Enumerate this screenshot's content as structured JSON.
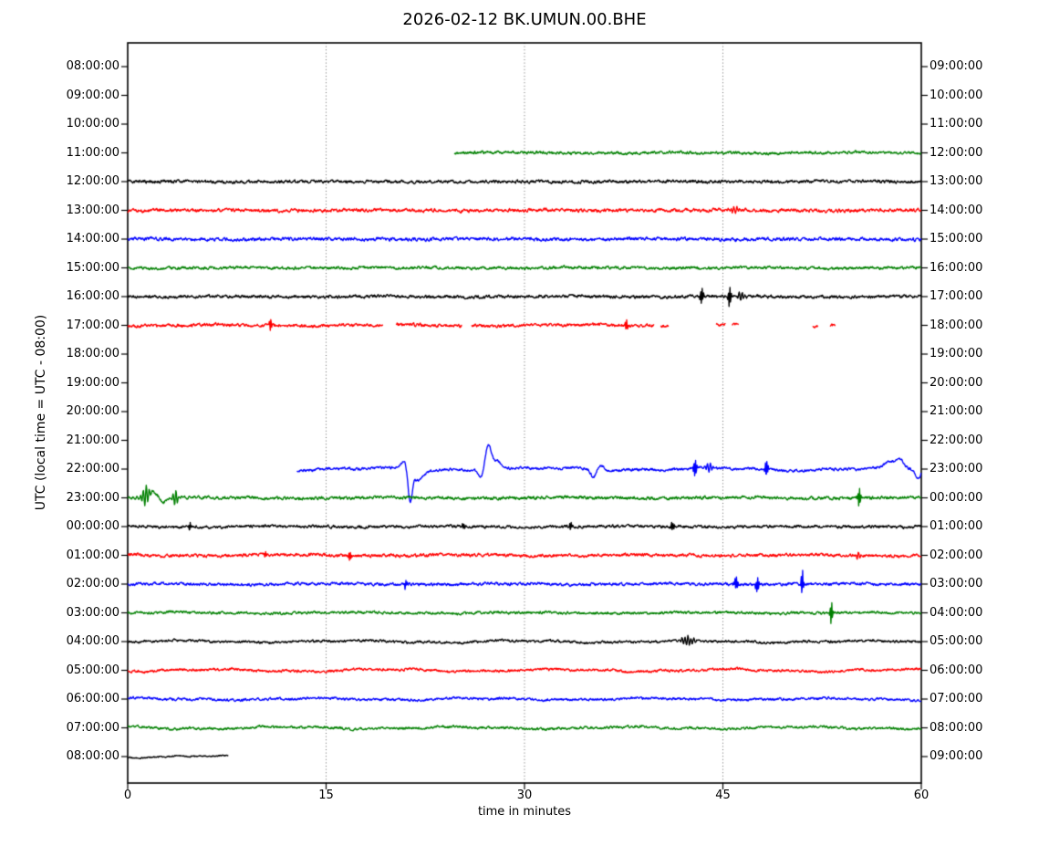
{
  "chart_data": {
    "type": "line",
    "subtype": "seismogram-dayplot",
    "title": "2026-02-12 BK.UMUN.00.BHE",
    "xlabel": "time in minutes",
    "ylabel": "UTC (local time = UTC - 08:00)",
    "xlim": [
      0,
      60
    ],
    "x_ticks": [
      0,
      15,
      30,
      45,
      60
    ],
    "minutes_per_row": 60,
    "grid": {
      "vertical_dotted_at": [
        15,
        30,
        45
      ],
      "horizontal": false
    },
    "legend": null,
    "colors": {
      "black": "#000000",
      "red": "#ff0000",
      "blue": "#0000ff",
      "green": "#008000"
    },
    "rows": [
      {
        "utc_left": "08:00:00",
        "utc_right": "09:00:00",
        "color": "black",
        "segments": [],
        "noise": {
          "fuzz": 0,
          "wander": 0
        },
        "events": []
      },
      {
        "utc_left": "09:00:00",
        "utc_right": "10:00:00",
        "color": "red",
        "segments": [],
        "noise": {
          "fuzz": 0,
          "wander": 0
        },
        "events": []
      },
      {
        "utc_left": "10:00:00",
        "utc_right": "11:00:00",
        "color": "blue",
        "segments": [],
        "noise": {
          "fuzz": 0,
          "wander": 0
        },
        "events": []
      },
      {
        "utc_left": "11:00:00",
        "utc_right": "12:00:00",
        "color": "green",
        "segments": [
          [
            24.7,
            60
          ]
        ],
        "noise": {
          "fuzz": 2.2,
          "wander": 0.8
        },
        "events": []
      },
      {
        "utc_left": "12:00:00",
        "utc_right": "13:00:00",
        "color": "black",
        "segments": [
          [
            0,
            60
          ]
        ],
        "noise": {
          "fuzz": 2.4,
          "wander": 0.5
        },
        "events": []
      },
      {
        "utc_left": "13:00:00",
        "utc_right": "14:00:00",
        "color": "red",
        "segments": [
          [
            0,
            60
          ]
        ],
        "noise": {
          "fuzz": 2.6,
          "wander": 0.6
        },
        "events": [
          {
            "t": 46.0,
            "amp": 3,
            "w": 0.5,
            "kind": "burst"
          }
        ]
      },
      {
        "utc_left": "14:00:00",
        "utc_right": "15:00:00",
        "color": "blue",
        "segments": [
          [
            0,
            60
          ]
        ],
        "noise": {
          "fuzz": 2.6,
          "wander": 0.5
        },
        "events": []
      },
      {
        "utc_left": "15:00:00",
        "utc_right": "16:00:00",
        "color": "green",
        "segments": [
          [
            0,
            60
          ]
        ],
        "noise": {
          "fuzz": 2.2,
          "wander": 0.6
        },
        "events": []
      },
      {
        "utc_left": "16:00:00",
        "utc_right": "17:00:00",
        "color": "black",
        "segments": [
          [
            0,
            60
          ]
        ],
        "noise": {
          "fuzz": 2.4,
          "wander": 0.6
        },
        "events": [
          {
            "t": 43.4,
            "amp": 9,
            "w": 0.12,
            "kind": "spike"
          },
          {
            "t": 45.5,
            "amp": 11,
            "w": 0.12,
            "kind": "spike"
          },
          {
            "t": 46.4,
            "amp": 4,
            "w": 0.3,
            "kind": "burst"
          }
        ]
      },
      {
        "utc_left": "17:00:00",
        "utc_right": "18:00:00",
        "color": "red",
        "segments": [
          [
            0,
            19.3
          ],
          [
            20.3,
            25.3
          ],
          [
            26.0,
            39.8
          ],
          [
            40.3,
            40.9
          ],
          [
            44.5,
            45.2
          ],
          [
            45.7,
            46.2
          ],
          [
            51.8,
            52.2
          ],
          [
            53.1,
            53.5
          ]
        ],
        "noise": {
          "fuzz": 2.4,
          "wander": 1.2
        },
        "events": [
          {
            "t": 10.8,
            "amp": 8,
            "w": 0.1,
            "kind": "spike"
          },
          {
            "t": 37.7,
            "amp": 6,
            "w": 0.12,
            "kind": "spike"
          }
        ]
      },
      {
        "utc_left": "18:00:00",
        "utc_right": "19:00:00",
        "color": "blue",
        "segments": [],
        "noise": {
          "fuzz": 0,
          "wander": 0
        },
        "events": []
      },
      {
        "utc_left": "19:00:00",
        "utc_right": "20:00:00",
        "color": "green",
        "segments": [],
        "noise": {
          "fuzz": 0,
          "wander": 0
        },
        "events": []
      },
      {
        "utc_left": "20:00:00",
        "utc_right": "21:00:00",
        "color": "black",
        "segments": [],
        "noise": {
          "fuzz": 0,
          "wander": 0
        },
        "events": []
      },
      {
        "utc_left": "21:00:00",
        "utc_right": "22:00:00",
        "color": "red",
        "segments": [],
        "noise": {
          "fuzz": 0,
          "wander": 0
        },
        "events": []
      },
      {
        "utc_left": "22:00:00",
        "utc_right": "23:00:00",
        "color": "blue",
        "segments": [
          [
            12.8,
            60
          ]
        ],
        "noise": {
          "fuzz": 2.0,
          "wander": 2.2
        },
        "events": [
          {
            "t": 20.9,
            "amp": 8,
            "w": 0.35,
            "kind": "bump"
          },
          {
            "t": 21.35,
            "amp": 34,
            "w": 0.22,
            "kind": "dip"
          },
          {
            "t": 21.95,
            "amp": 12,
            "w": 0.55,
            "kind": "dip"
          },
          {
            "t": 26.7,
            "amp": 8,
            "w": 0.25,
            "kind": "dip"
          },
          {
            "t": 27.25,
            "amp": 25,
            "w": 0.3,
            "kind": "bump"
          },
          {
            "t": 27.85,
            "amp": 9,
            "w": 0.55,
            "kind": "bump"
          },
          {
            "t": 35.2,
            "amp": 9,
            "w": 0.25,
            "kind": "dip"
          },
          {
            "t": 35.8,
            "amp": 5,
            "w": 0.3,
            "kind": "bump"
          },
          {
            "t": 42.9,
            "amp": 10,
            "w": 0.13,
            "kind": "spike"
          },
          {
            "t": 44.0,
            "amp": 4,
            "w": 0.3,
            "kind": "burst"
          },
          {
            "t": 48.3,
            "amp": 9,
            "w": 0.13,
            "kind": "spike"
          },
          {
            "t": 57.6,
            "amp": 7,
            "w": 0.5,
            "kind": "bump"
          },
          {
            "t": 58.4,
            "amp": 9,
            "w": 0.4,
            "kind": "bump"
          },
          {
            "t": 59.75,
            "amp": 11,
            "w": 0.25,
            "kind": "dip"
          }
        ]
      },
      {
        "utc_left": "23:00:00",
        "utc_right": "00:00:00",
        "color": "green",
        "segments": [
          [
            0,
            60
          ]
        ],
        "noise": {
          "fuzz": 2.4,
          "wander": 0.8
        },
        "events": [
          {
            "t": 1.35,
            "amp": 11,
            "w": 0.3,
            "kind": "burst"
          },
          {
            "t": 1.9,
            "amp": 7,
            "w": 0.5,
            "kind": "bump"
          },
          {
            "t": 2.7,
            "amp": 4,
            "w": 0.4,
            "kind": "dip"
          },
          {
            "t": 3.6,
            "amp": 9,
            "w": 0.2,
            "kind": "burst"
          },
          {
            "t": 55.3,
            "amp": 11,
            "w": 0.12,
            "kind": "spike"
          }
        ]
      },
      {
        "utc_left": "00:00:00",
        "utc_right": "01:00:00",
        "color": "black",
        "segments": [
          [
            0,
            60
          ]
        ],
        "noise": {
          "fuzz": 2.2,
          "wander": 0.8
        },
        "events": [
          {
            "t": 4.7,
            "amp": 5,
            "w": 0.1,
            "kind": "spike"
          },
          {
            "t": 25.4,
            "amp": 3,
            "w": 0.12,
            "kind": "spike"
          },
          {
            "t": 33.5,
            "amp": 4,
            "w": 0.12,
            "kind": "spike"
          },
          {
            "t": 41.2,
            "amp": 4.5,
            "w": 0.15,
            "kind": "spike"
          }
        ]
      },
      {
        "utc_left": "01:00:00",
        "utc_right": "02:00:00",
        "color": "red",
        "segments": [
          [
            0,
            60
          ]
        ],
        "noise": {
          "fuzz": 2.4,
          "wander": 1.0
        },
        "events": [
          {
            "t": 10.4,
            "amp": 3.5,
            "w": 0.1,
            "kind": "spike"
          },
          {
            "t": 16.8,
            "amp": 5.5,
            "w": 0.1,
            "kind": "spike"
          },
          {
            "t": 55.2,
            "amp": 3.5,
            "w": 0.2,
            "kind": "burst"
          }
        ]
      },
      {
        "utc_left": "02:00:00",
        "utc_right": "03:00:00",
        "color": "blue",
        "segments": [
          [
            0,
            60
          ]
        ],
        "noise": {
          "fuzz": 2.2,
          "wander": 0.8
        },
        "events": [
          {
            "t": 21.0,
            "amp": 5,
            "w": 0.1,
            "kind": "spike"
          },
          {
            "t": 46.0,
            "amp": 8,
            "w": 0.14,
            "kind": "spike"
          },
          {
            "t": 47.6,
            "amp": 8,
            "w": 0.14,
            "kind": "spike"
          },
          {
            "t": 51.0,
            "amp": 15,
            "w": 0.1,
            "kind": "spike"
          }
        ]
      },
      {
        "utc_left": "03:00:00",
        "utc_right": "04:00:00",
        "color": "green",
        "segments": [
          [
            0,
            60
          ]
        ],
        "noise": {
          "fuzz": 2.0,
          "wander": 0.9
        },
        "events": [
          {
            "t": 53.2,
            "amp": 13,
            "w": 0.1,
            "kind": "spike"
          }
        ]
      },
      {
        "utc_left": "04:00:00",
        "utc_right": "05:00:00",
        "color": "black",
        "segments": [
          [
            0,
            60
          ]
        ],
        "noise": {
          "fuzz": 1.9,
          "wander": 1.6
        },
        "events": [
          {
            "t": 42.3,
            "amp": 5,
            "w": 0.5,
            "kind": "burst"
          }
        ]
      },
      {
        "utc_left": "05:00:00",
        "utc_right": "06:00:00",
        "color": "red",
        "segments": [
          [
            0,
            60
          ]
        ],
        "noise": {
          "fuzz": 2.0,
          "wander": 1.8
        },
        "events": []
      },
      {
        "utc_left": "06:00:00",
        "utc_right": "07:00:00",
        "color": "blue",
        "segments": [
          [
            0,
            60
          ]
        ],
        "noise": {
          "fuzz": 1.9,
          "wander": 1.5
        },
        "events": []
      },
      {
        "utc_left": "07:00:00",
        "utc_right": "08:00:00",
        "color": "green",
        "segments": [
          [
            0,
            60
          ]
        ],
        "noise": {
          "fuzz": 1.9,
          "wander": 1.8
        },
        "events": []
      },
      {
        "utc_left": "08:00:00",
        "utc_right": "09:00:00",
        "color": "black",
        "segments": [
          [
            0,
            7.6
          ]
        ],
        "noise": {
          "fuzz": 1.1,
          "wander": 1.6
        },
        "events": []
      }
    ]
  }
}
